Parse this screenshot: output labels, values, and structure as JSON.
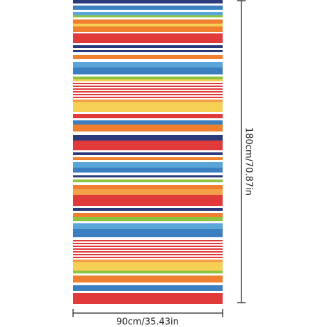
{
  "width_label": "90cm/35.43in",
  "height_label": "180cm/70.87in"
}
